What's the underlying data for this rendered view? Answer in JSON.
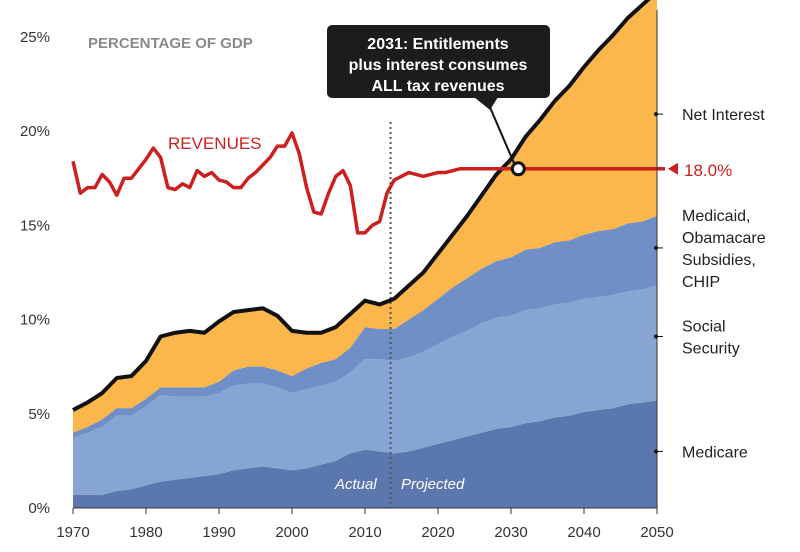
{
  "chart_data": {
    "type": "area",
    "title": "PERCENTAGE OF GDP",
    "xlabel": "",
    "ylabel": "",
    "xlim": [
      1970,
      2050
    ],
    "ylim": [
      0,
      26
    ],
    "grid": false,
    "x_ticks": [
      1970,
      1980,
      1990,
      2000,
      2010,
      2020,
      2030,
      2040,
      2050
    ],
    "x_tick_labels": [
      "1970",
      "1980",
      "1990",
      "2000",
      "2010",
      "2020",
      "2030",
      "2040",
      "2050"
    ],
    "y_ticks": [
      0,
      5,
      10,
      15,
      20,
      25
    ],
    "y_tick_labels": [
      "0%",
      "5%",
      "10%",
      "15%",
      "20%",
      "25%"
    ],
    "x": [
      1970,
      1972,
      1974,
      1976,
      1978,
      1980,
      1982,
      1984,
      1986,
      1988,
      1990,
      1992,
      1994,
      1996,
      1998,
      2000,
      2002,
      2004,
      2006,
      2008,
      2010,
      2012,
      2014,
      2016,
      2018,
      2020,
      2022,
      2024,
      2026,
      2028,
      2030,
      2032,
      2034,
      2036,
      2038,
      2040,
      2042,
      2044,
      2046,
      2048,
      2050
    ],
    "series": [
      {
        "name": "Medicare",
        "color": "#5a78ad",
        "values": [
          0.7,
          0.7,
          0.7,
          0.9,
          1.0,
          1.2,
          1.4,
          1.5,
          1.6,
          1.7,
          1.8,
          2.0,
          2.1,
          2.2,
          2.1,
          2.0,
          2.1,
          2.3,
          2.5,
          2.9,
          3.1,
          3.0,
          2.9,
          3.0,
          3.2,
          3.4,
          3.6,
          3.8,
          4.0,
          4.2,
          4.3,
          4.5,
          4.6,
          4.8,
          4.9,
          5.1,
          5.2,
          5.3,
          5.5,
          5.6,
          5.7
        ]
      },
      {
        "name": "Social Security",
        "color": "#86a5d2",
        "values": [
          3.0,
          3.3,
          3.6,
          4.0,
          3.9,
          4.2,
          4.6,
          4.4,
          4.3,
          4.2,
          4.3,
          4.5,
          4.5,
          4.4,
          4.3,
          4.1,
          4.2,
          4.2,
          4.2,
          4.3,
          4.8,
          4.9,
          4.9,
          5.0,
          5.1,
          5.3,
          5.5,
          5.6,
          5.8,
          5.9,
          5.9,
          6.0,
          6.0,
          6.0,
          6.0,
          6.0,
          6.0,
          6.0,
          6.0,
          6.0,
          6.1
        ]
      },
      {
        "name": "Medicaid, Obamacare Subsidies, CHIP",
        "color": "#6f8fc6",
        "values": [
          0.3,
          0.3,
          0.4,
          0.4,
          0.4,
          0.4,
          0.4,
          0.5,
          0.5,
          0.5,
          0.6,
          0.8,
          0.9,
          0.9,
          0.9,
          0.9,
          1.1,
          1.2,
          1.2,
          1.3,
          1.7,
          1.6,
          1.7,
          2.0,
          2.2,
          2.4,
          2.6,
          2.8,
          2.9,
          3.0,
          3.1,
          3.2,
          3.2,
          3.3,
          3.3,
          3.4,
          3.5,
          3.5,
          3.6,
          3.6,
          3.7
        ]
      },
      {
        "name": "Net Interest",
        "color": "#fbb64c",
        "values": [
          1.2,
          1.3,
          1.4,
          1.6,
          1.7,
          2.0,
          2.7,
          2.9,
          3.0,
          2.9,
          3.2,
          3.1,
          3.0,
          3.1,
          2.9,
          2.4,
          1.9,
          1.6,
          1.7,
          1.8,
          1.4,
          1.3,
          1.6,
          1.8,
          2.0,
          2.4,
          2.8,
          3.3,
          3.9,
          4.6,
          5.2,
          6.0,
          6.8,
          7.5,
          8.2,
          8.9,
          9.6,
          10.3,
          10.9,
          11.5,
          11.9
        ]
      }
    ],
    "revenues": {
      "name": "REVENUES",
      "color": "#cc1f1f",
      "x": [
        1970,
        1971,
        1972,
        1973,
        1974,
        1975,
        1976,
        1977,
        1978,
        1979,
        1980,
        1981,
        1982,
        1983,
        1984,
        1985,
        1986,
        1987,
        1988,
        1989,
        1990,
        1991,
        1992,
        1993,
        1994,
        1995,
        1996,
        1997,
        1998,
        1999,
        2000,
        2001,
        2002,
        2003,
        2004,
        2005,
        2006,
        2007,
        2008,
        2009,
        2010,
        2011,
        2012,
        2013,
        2014,
        2015,
        2016,
        2017,
        2018,
        2019,
        2020,
        2021,
        2022,
        2023,
        2024,
        2025,
        2030,
        2035,
        2040,
        2045,
        2050
      ],
      "values": [
        18.4,
        16.7,
        17.0,
        17.0,
        17.7,
        17.3,
        16.6,
        17.5,
        17.5,
        18.0,
        18.5,
        19.1,
        18.6,
        17.0,
        16.9,
        17.2,
        17.0,
        17.9,
        17.6,
        17.8,
        17.4,
        17.3,
        17.0,
        17.0,
        17.5,
        17.8,
        18.2,
        18.6,
        19.2,
        19.2,
        19.9,
        18.8,
        17.0,
        15.7,
        15.6,
        16.7,
        17.6,
        17.9,
        17.1,
        14.6,
        14.6,
        15.0,
        15.2,
        16.7,
        17.4,
        17.6,
        17.8,
        17.7,
        17.6,
        17.7,
        17.8,
        17.8,
        17.9,
        18.0,
        18.0,
        18.0,
        18.0,
        18.0,
        18.0,
        18.0,
        18.0
      ]
    },
    "divider_year": 2013.5,
    "annotations": {
      "actual": "Actual",
      "projected": "Projected",
      "revenue_end_value": "18.0%",
      "callout": [
        "2031: Entitlements",
        "plus interest consumes",
        "ALL tax revenues"
      ],
      "callout_year": 2031,
      "callout_value": 18.0
    },
    "right_labels": [
      {
        "lines": [
          "Net Interest"
        ],
        "value": 20.9
      },
      {
        "lines": [
          "Medicaid,",
          "Obamacare",
          "Subsidies,",
          "CHIP"
        ],
        "value": 13.8
      },
      {
        "lines": [
          "Social",
          "Security"
        ],
        "value": 9.1
      },
      {
        "lines": [
          "Medicare"
        ],
        "value": 3.0
      }
    ]
  }
}
